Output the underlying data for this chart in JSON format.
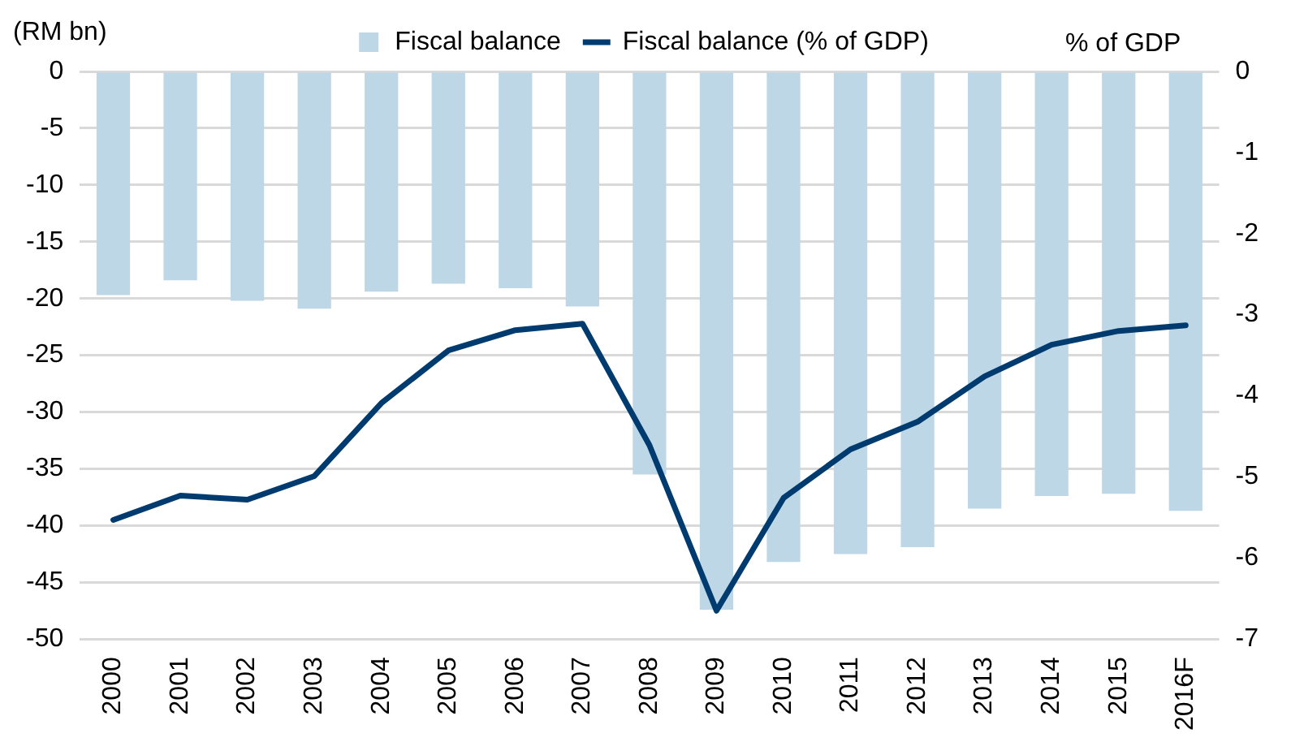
{
  "chart_data": {
    "type": "bar",
    "ylabel": "(RM bn)",
    "y2label": "% of GDP",
    "categories": [
      "2000",
      "2001",
      "2002",
      "2003",
      "2004",
      "2005",
      "2006",
      "2007",
      "2008",
      "2009",
      "2010",
      "2011",
      "2012",
      "2013",
      "2014",
      "2015",
      "2016F"
    ],
    "series": [
      {
        "name": "Fiscal balance",
        "color": "#bdd7e7",
        "values": [
          -19.7,
          -18.4,
          -20.2,
          -20.9,
          -19.4,
          -18.7,
          -19.1,
          -20.7,
          -35.5,
          -47.4,
          -43.2,
          -42.5,
          -41.9,
          -38.5,
          -37.4,
          -37.2,
          -38.7
        ]
      },
      {
        "name": "Fiscal balance (% of GDP)",
        "type": "line",
        "axis": "y2",
        "color": "#003b6f",
        "values": [
          -5.53,
          -5.23,
          -5.28,
          -4.99,
          -4.09,
          -3.44,
          -3.19,
          -3.11,
          -4.61,
          -6.65,
          -5.26,
          -4.66,
          -4.32,
          -3.76,
          -3.37,
          -3.2,
          -3.13
        ]
      }
    ],
    "ylim": [
      -50,
      0
    ],
    "yticks": [
      0,
      -5,
      -10,
      -15,
      -20,
      -25,
      -30,
      -35,
      -40,
      -45,
      -50
    ],
    "y2lim": [
      -7,
      0
    ],
    "y2ticks": [
      0,
      -1,
      -2,
      -3,
      -4,
      -5,
      -6,
      -7
    ],
    "grid": "y",
    "legend": "top",
    "marker": "none",
    "line_style": "solid"
  }
}
